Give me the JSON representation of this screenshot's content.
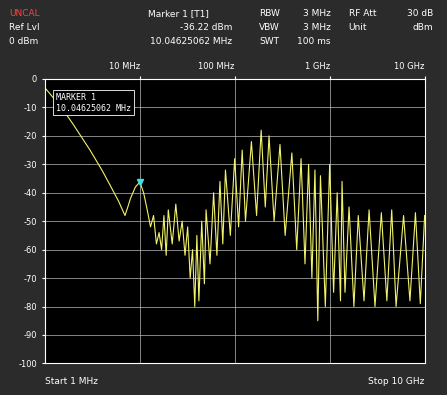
{
  "chart_data": {
    "type": "line",
    "color": "#f2f26a",
    "log": "x",
    "grid": true,
    "x": [
      1,
      1.5,
      2,
      3,
      4,
      5,
      6,
      7,
      7.5,
      8,
      9,
      10.04625062,
      11,
      12,
      13,
      14,
      15,
      16,
      17,
      18,
      19,
      20,
      22,
      24,
      26,
      28,
      30,
      32,
      34,
      36,
      38,
      40,
      42,
      45,
      48,
      50,
      55,
      60,
      65,
      70,
      75,
      80,
      90,
      100,
      110,
      120,
      130,
      150,
      170,
      190,
      210,
      230,
      260,
      300,
      340,
      400,
      450,
      500,
      550,
      600,
      650,
      700,
      750,
      800,
      900,
      1000,
      1100,
      1200,
      1300,
      1350,
      1450,
      1600,
      1800,
      2000,
      2300,
      2600,
      3000,
      3500,
      4000,
      4500,
      5000,
      6000,
      7000,
      8000,
      9000,
      10000
    ],
    "values": [
      -3,
      -10,
      -16,
      -25,
      -32,
      -38,
      -43,
      -48,
      -45,
      -42,
      -38,
      -36.22,
      -40,
      -46,
      -52,
      -48,
      -58,
      -54,
      -60,
      -48,
      -62,
      -46,
      -58,
      -44,
      -57,
      -50,
      -62,
      -52,
      -70,
      -60,
      -80,
      -55,
      -78,
      -50,
      -72,
      -46,
      -65,
      -40,
      -62,
      -36,
      -58,
      -32,
      -55,
      -28,
      -52,
      -25,
      -50,
      -22,
      -48,
      -18,
      -45,
      -20,
      -50,
      -23,
      -55,
      -26,
      -60,
      -28,
      -65,
      -30,
      -70,
      -32,
      -85,
      -34,
      -80,
      -30,
      -75,
      -40,
      -78,
      -36,
      -75,
      -45,
      -80,
      -48,
      -78,
      -46,
      -80,
      -47,
      -78,
      -46,
      -80,
      -48,
      -78,
      -47,
      -79,
      -48
    ],
    "xlim": [
      1,
      10000
    ],
    "ylim": [
      -100,
      0
    ],
    "xticks": [
      {
        "value": 10,
        "label": "10 MHz"
      },
      {
        "value": 100,
        "label": "100 MHz"
      },
      {
        "value": 1000,
        "label": "1 GHz"
      },
      {
        "value": 10000,
        "label": "10 GHz"
      }
    ],
    "yticks": [
      -100,
      -90,
      -80,
      -70,
      -60,
      -50,
      -40,
      -30,
      -20,
      -10,
      0
    ],
    "marker_readout": {
      "header_label": "Marker 1 [T1]",
      "name": "MARKER 1",
      "x": 10.04625062,
      "x_label": "10.04625062 MHz",
      "value": -36.22,
      "value_label": "-36.22 dBm"
    },
    "annotations": [
      "UNCAL",
      "Ref Lvl",
      "0 dBm",
      "RBW",
      "3 MHz",
      "VBW",
      "3 MHz",
      "SWT",
      "100 ms",
      "RF Att",
      "30 dB",
      "Unit",
      "dBm"
    ],
    "start_label": "Start 1 MHz",
    "stop_label": "Stop 10 GHz"
  }
}
